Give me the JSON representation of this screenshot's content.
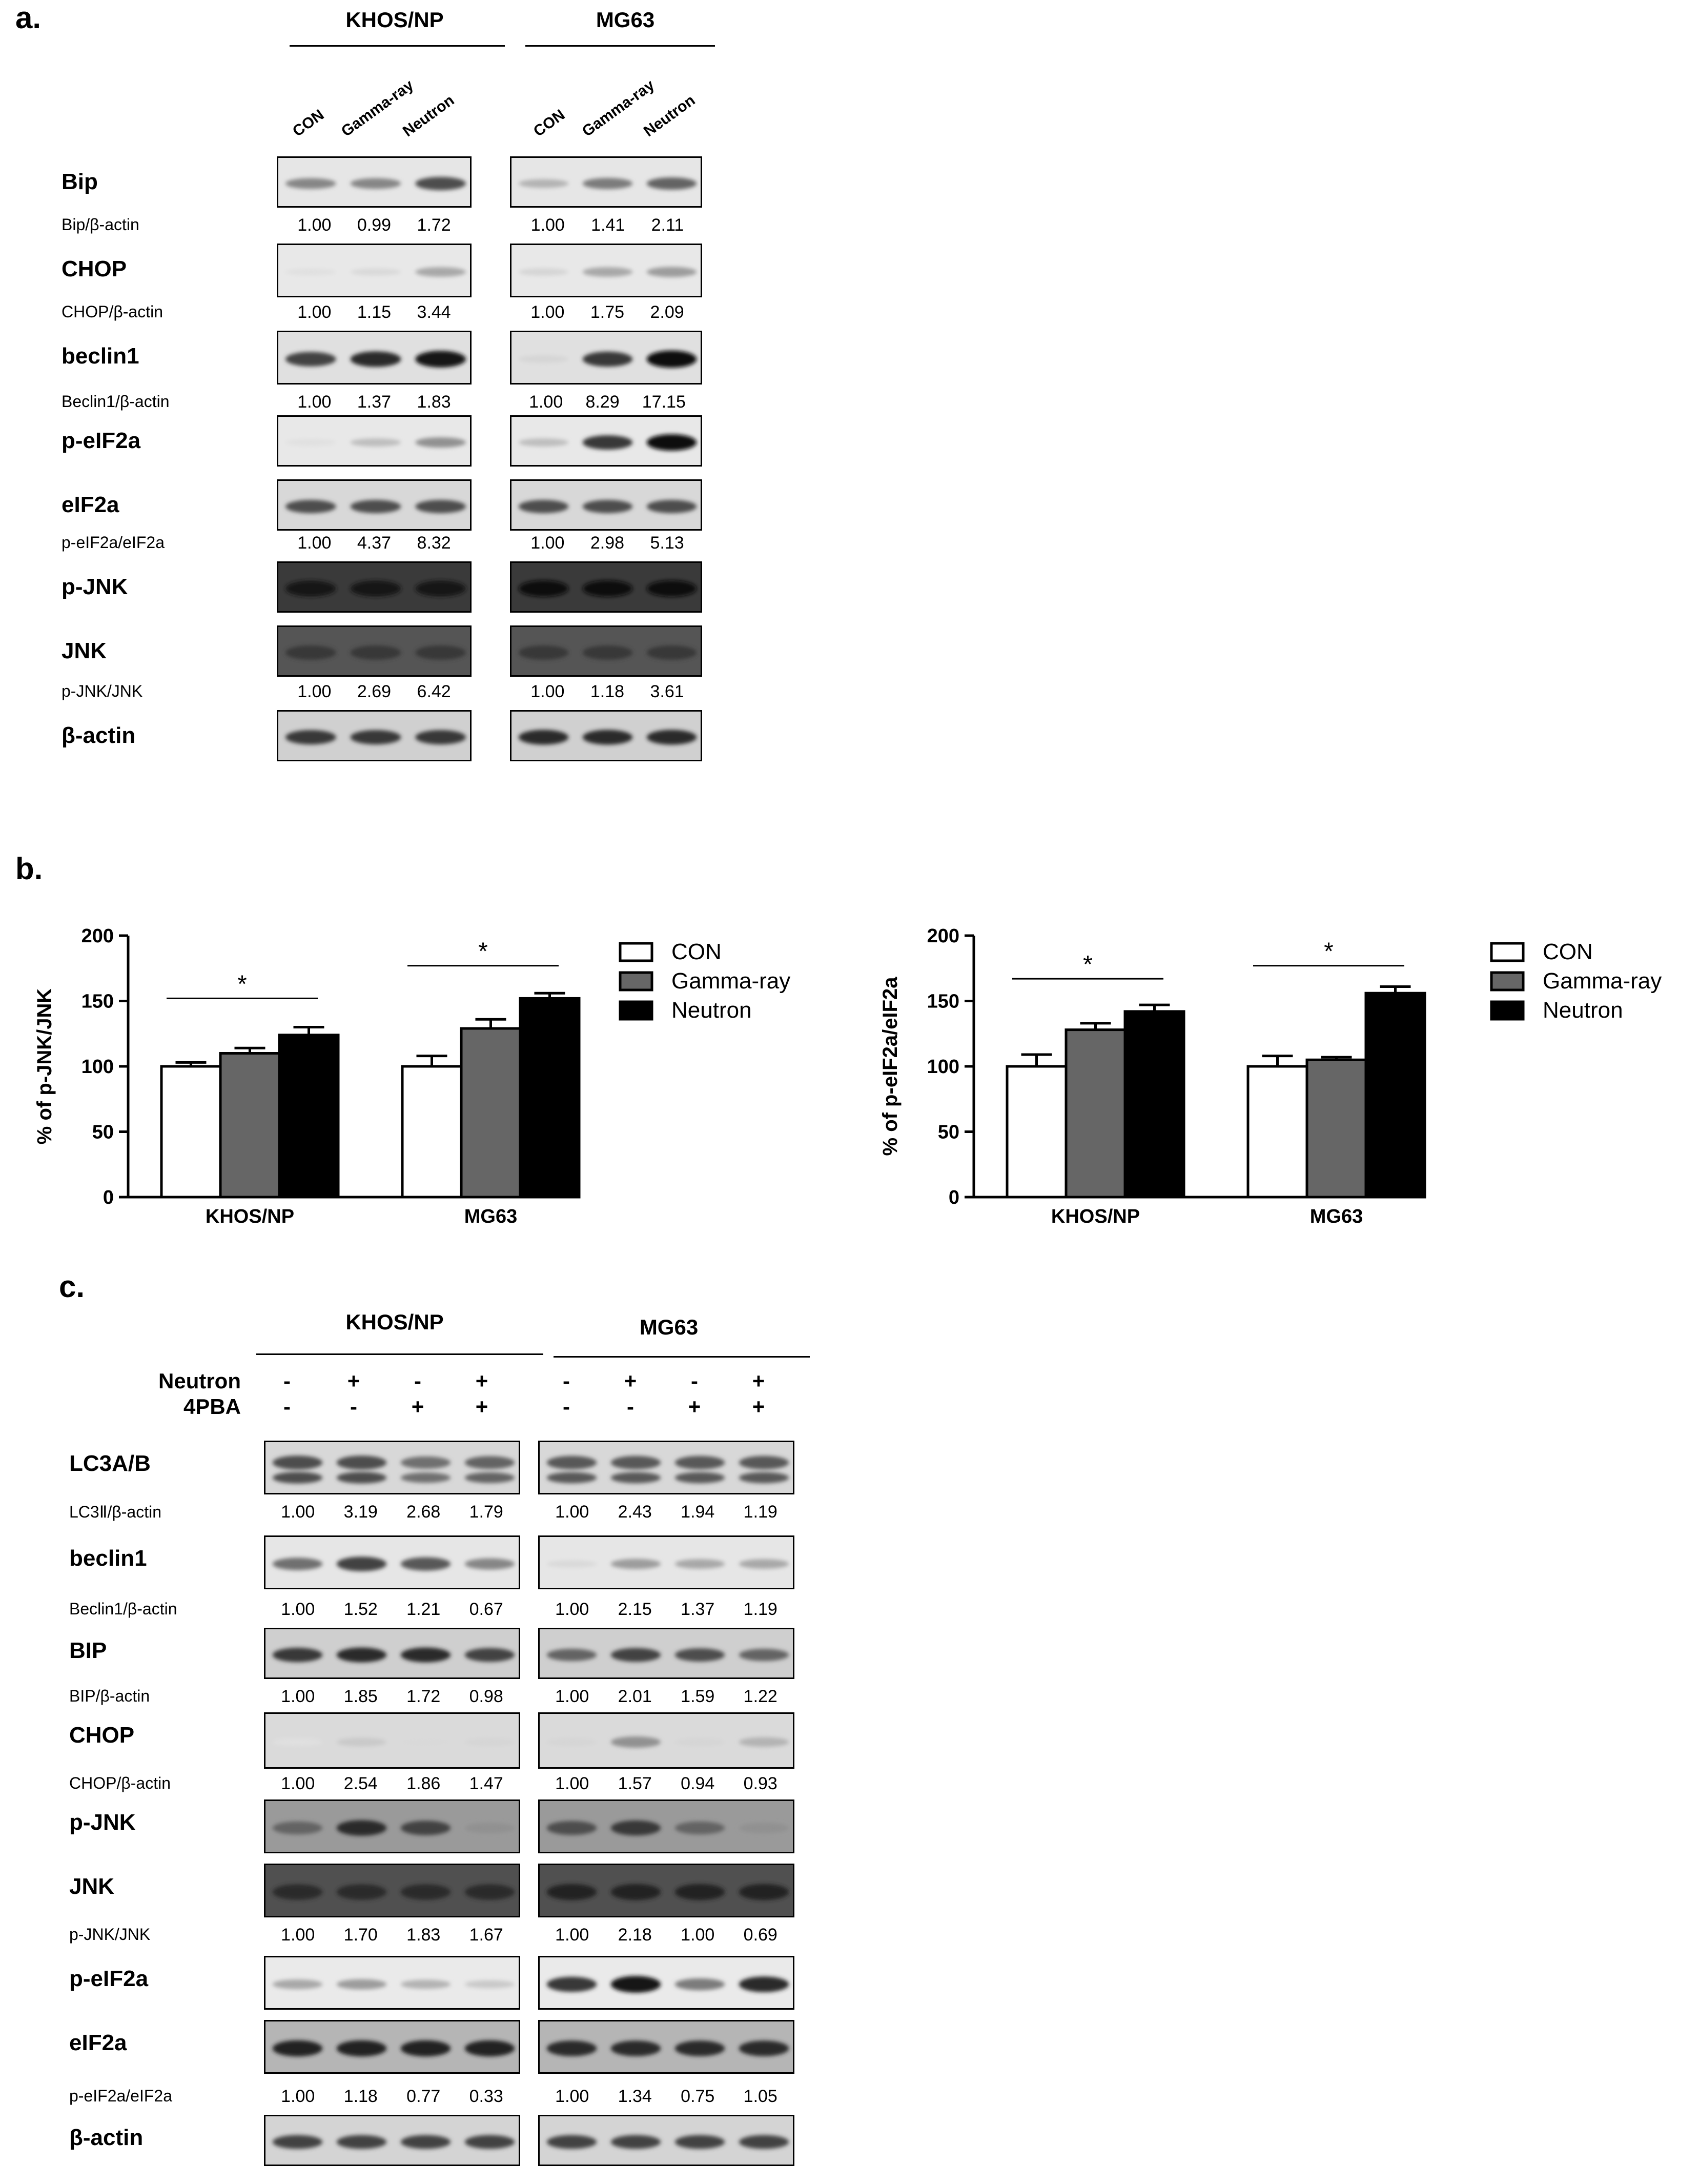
{
  "panel_a": {
    "letter": "a.",
    "groups": [
      {
        "name": "KHOS/NP",
        "lanes": [
          "CON",
          "Gamma-ray",
          "Neutron"
        ]
      },
      {
        "name": "MG63",
        "lanes": [
          "CON",
          "Gamma-ray",
          "Neutron"
        ]
      }
    ],
    "rows": [
      {
        "protein": "Bip",
        "ratio_label": "Bip/β-actin",
        "khos": [
          "1.00",
          "0.99",
          "1.72"
        ],
        "mg63": [
          "1.00",
          "1.41",
          "2.11"
        ],
        "khos_band": [
          0.45,
          0.45,
          0.7
        ],
        "mg63_band": [
          0.25,
          0.5,
          0.6
        ],
        "bg": "#e6e6e6"
      },
      {
        "protein": "CHOP",
        "ratio_label": "CHOP/β-actin",
        "khos": [
          "1.00",
          "1.15",
          "3.44"
        ],
        "mg63": [
          "1.00",
          "1.75",
          "2.09"
        ],
        "khos_band": [
          0.05,
          0.08,
          0.3
        ],
        "mg63_band": [
          0.1,
          0.3,
          0.35
        ],
        "bg": "#e8e8e8"
      },
      {
        "protein": "beclin1",
        "ratio_label": "Beclin1/β-actin",
        "khos": [
          "1.00",
          "1.37",
          "1.83"
        ],
        "mg63": [
          "1.00",
          "8.29",
          "17.15"
        ],
        "khos_band": [
          0.75,
          0.85,
          0.95
        ],
        "mg63_band": [
          0.1,
          0.8,
          1.0
        ],
        "bg": "#e0e0e0"
      },
      {
        "protein": "p-eIF2a",
        "ratio_label": null,
        "khos": null,
        "mg63": null,
        "khos_band": [
          0.05,
          0.2,
          0.4
        ],
        "mg63_band": [
          0.2,
          0.8,
          1.0
        ],
        "bg": "#e8e8e8"
      },
      {
        "protein": "eIF2a",
        "ratio_label": "p-eIF2a/eIF2a",
        "khos": [
          "1.00",
          "4.37",
          "8.32"
        ],
        "mg63": [
          "1.00",
          "2.98",
          "5.13"
        ],
        "khos_band": [
          0.7,
          0.7,
          0.7
        ],
        "mg63_band": [
          0.7,
          0.7,
          0.7
        ],
        "bg": "#d8d8d8"
      },
      {
        "protein": "p-JNK",
        "ratio_label": null,
        "khos": null,
        "mg63": null,
        "khos_band": [
          0.95,
          0.95,
          0.95
        ],
        "mg63_band": [
          1.0,
          1.0,
          1.0
        ],
        "bg": "#3a3a3a"
      },
      {
        "protein": "JNK",
        "ratio_label": "p-JNK/JNK",
        "khos": [
          "1.00",
          "2.69",
          "6.42"
        ],
        "mg63": [
          "1.00",
          "1.18",
          "3.61"
        ],
        "khos_band": [
          0.8,
          0.8,
          0.8
        ],
        "mg63_band": [
          0.8,
          0.8,
          0.8
        ],
        "bg": "#555555"
      },
      {
        "protein": "β-actin",
        "ratio_label": null,
        "khos": null,
        "mg63": null,
        "khos_band": [
          0.8,
          0.8,
          0.8
        ],
        "mg63_band": [
          0.85,
          0.85,
          0.85
        ],
        "bg": "#d0d0d0"
      }
    ]
  },
  "panel_b": {
    "letter": "b.",
    "legend": [
      "CON",
      "Gamma-ray",
      "Neutron"
    ],
    "colors": {
      "CON": "#ffffff",
      "Gamma-ray": "#666666",
      "Neutron": "#000000"
    },
    "star": "*"
  },
  "chart_data": [
    {
      "type": "bar",
      "ylabel": "% of p-JNK/JNK",
      "categories": [
        "KHOS/NP",
        "MG63"
      ],
      "ylim": [
        0,
        200
      ],
      "yticks": [
        "0",
        "50",
        "100",
        "150",
        "200"
      ],
      "series": [
        {
          "name": "CON",
          "values": [
            100,
            100
          ],
          "errors": [
            3,
            8
          ]
        },
        {
          "name": "Gamma-ray",
          "values": [
            110,
            129
          ],
          "errors": [
            4,
            7
          ]
        },
        {
          "name": "Neutron",
          "values": [
            124,
            152
          ],
          "errors": [
            6,
            4
          ]
        }
      ],
      "significance": [
        {
          "category": "KHOS/NP",
          "label": "*",
          "y": 152
        },
        {
          "category": "MG63",
          "label": "*",
          "y": 177
        }
      ]
    },
    {
      "type": "bar",
      "ylabel": "% of p-eIF2a/eIF2a",
      "categories": [
        "KHOS/NP",
        "MG63"
      ],
      "ylim": [
        0,
        200
      ],
      "yticks": [
        "0",
        "50",
        "100",
        "150",
        "200"
      ],
      "series": [
        {
          "name": "CON",
          "values": [
            100,
            100
          ],
          "errors": [
            9,
            8
          ]
        },
        {
          "name": "Gamma-ray",
          "values": [
            128,
            105
          ],
          "errors": [
            5,
            2
          ]
        },
        {
          "name": "Neutron",
          "values": [
            142,
            156
          ],
          "errors": [
            5,
            5
          ]
        }
      ],
      "significance": [
        {
          "category": "KHOS/NP",
          "label": "*",
          "y": 167
        },
        {
          "category": "MG63",
          "label": "*",
          "y": 177
        }
      ]
    }
  ],
  "panel_c": {
    "letter": "c.",
    "groups": [
      "KHOS/NP",
      "MG63"
    ],
    "conditions": [
      {
        "label": "Neutron",
        "signs": [
          "-",
          "+",
          "-",
          "+"
        ]
      },
      {
        "label": "4PBA",
        "signs": [
          "-",
          "-",
          "+",
          "+"
        ]
      }
    ],
    "rows": [
      {
        "protein": "LC3A/B",
        "ratio_label": "LC3Ⅱ/β-actin",
        "khos": [
          "1.00",
          "3.19",
          "2.68",
          "1.79"
        ],
        "mg63": [
          "1.00",
          "2.43",
          "1.94",
          "1.19"
        ],
        "khos_band": [
          0.7,
          0.7,
          0.55,
          0.6
        ],
        "mg63_band": [
          0.65,
          0.65,
          0.65,
          0.65
        ],
        "bg": "#d8d8d8",
        "double": true
      },
      {
        "protein": "beclin1",
        "ratio_label": "Beclin1/β-actin",
        "khos": [
          "1.00",
          "1.52",
          "1.21",
          "0.67"
        ],
        "mg63": [
          "1.00",
          "2.15",
          "1.37",
          "1.19"
        ],
        "khos_band": [
          0.55,
          0.75,
          0.65,
          0.45
        ],
        "mg63_band": [
          0.08,
          0.35,
          0.3,
          0.3
        ],
        "bg": "#e6e6e6",
        "double": false
      },
      {
        "protein": "BIP",
        "ratio_label": "BIP/β-actin",
        "khos": [
          "1.00",
          "1.85",
          "1.72",
          "0.98"
        ],
        "mg63": [
          "1.00",
          "2.01",
          "1.59",
          "1.22"
        ],
        "khos_band": [
          0.8,
          0.85,
          0.85,
          0.75
        ],
        "mg63_band": [
          0.6,
          0.75,
          0.7,
          0.6
        ],
        "bg": "#cfcfcf",
        "double": false
      },
      {
        "protein": "CHOP",
        "ratio_label": "CHOP/β-actin",
        "khos": [
          "1.00",
          "2.54",
          "1.86",
          "1.47"
        ],
        "mg63": [
          "1.00",
          "1.57",
          "0.94",
          "0.93"
        ],
        "khos_band": [
          0.05,
          0.15,
          0.08,
          0.1
        ],
        "mg63_band": [
          0.1,
          0.4,
          0.1,
          0.25
        ],
        "bg": "#dadada",
        "double": false
      },
      {
        "protein": "p-JNK",
        "ratio_label": null,
        "khos": null,
        "mg63": null,
        "khos_band": [
          0.6,
          0.85,
          0.75,
          0.4
        ],
        "mg63_band": [
          0.7,
          0.8,
          0.6,
          0.4
        ],
        "bg": "#9a9a9a",
        "double": false
      },
      {
        "protein": "JNK",
        "ratio_label": "p-JNK/JNK",
        "khos": [
          "1.00",
          "1.70",
          "1.83",
          "1.67"
        ],
        "mg63": [
          "1.00",
          "2.18",
          "1.00",
          "0.69"
        ],
        "khos_band": [
          0.85,
          0.85,
          0.85,
          0.85
        ],
        "mg63_band": [
          0.9,
          0.9,
          0.9,
          0.9
        ],
        "bg": "#505050",
        "double": false
      },
      {
        "protein": "p-eIF2a",
        "ratio_label": null,
        "khos": null,
        "mg63": null,
        "khos_band": [
          0.3,
          0.35,
          0.25,
          0.15
        ],
        "mg63_band": [
          0.8,
          0.95,
          0.5,
          0.85
        ],
        "bg": "#eaeaea",
        "double": false
      },
      {
        "protein": "eIF2a",
        "ratio_label": "p-eIF2a/eIF2a",
        "khos": [
          "1.00",
          "1.18",
          "0.77",
          "0.33"
        ],
        "mg63": [
          "1.00",
          "1.34",
          "0.75",
          "1.05"
        ],
        "khos_band": [
          0.9,
          0.9,
          0.9,
          0.9
        ],
        "mg63_band": [
          0.85,
          0.85,
          0.85,
          0.85
        ],
        "bg": "#b5b5b5",
        "double": false
      },
      {
        "protein": "β-actin",
        "ratio_label": null,
        "khos": null,
        "mg63": null,
        "khos_band": [
          0.75,
          0.75,
          0.75,
          0.75
        ],
        "mg63_band": [
          0.75,
          0.75,
          0.75,
          0.75
        ],
        "bg": "#d4d4d4",
        "double": false
      }
    ]
  }
}
